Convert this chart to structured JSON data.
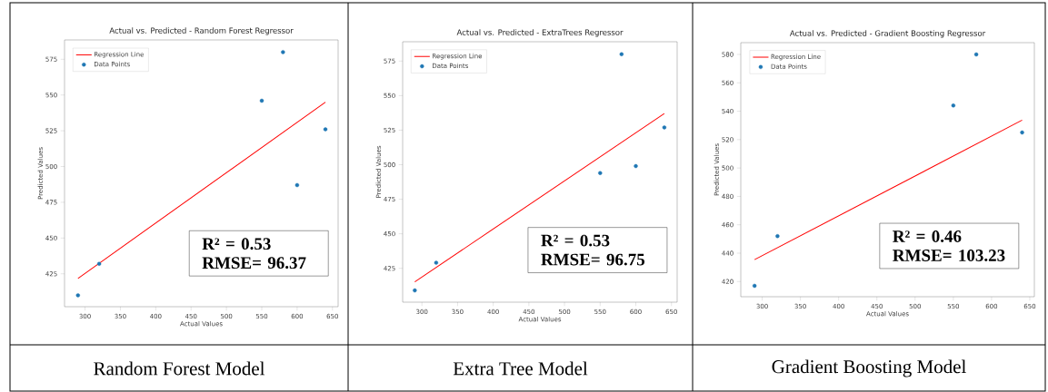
{
  "chart_data": [
    {
      "type": "scatter",
      "title": "Actual vs. Predicted - Random Forest Regressor",
      "xlabel": "Actual Values",
      "ylabel": "Predicted Values",
      "xlim": [
        271,
        658
      ],
      "ylim": [
        402,
        588.5
      ],
      "xticks": [
        300,
        350,
        400,
        450,
        500,
        550,
        600,
        650
      ],
      "yticks": [
        425,
        450,
        475,
        500,
        525,
        550,
        575
      ],
      "legend": "top left",
      "series": [
        {
          "name": "Regression Line",
          "type": "line",
          "marker": "none",
          "color": "#ff0000",
          "x": [
            290,
            640
          ],
          "values": [
            421.8,
            545
          ]
        },
        {
          "name": "Data Points",
          "type": "scatter",
          "marker": "circle",
          "color": "#1f77b4",
          "x": [
            290,
            320,
            550,
            580,
            600,
            640
          ],
          "values": [
            410,
            432,
            546,
            580,
            487,
            526
          ]
        }
      ],
      "annotations": [
        "**R² = 0.53**",
        "**RMSE= 96.37**",
        "Random Forest Model"
      ]
    },
    {
      "type": "scatter",
      "title": "Actual vs. Predicted - ExtraTrees Regressor",
      "xlabel": "Actual Values",
      "ylabel": "Predicted Values",
      "xlim": [
        273,
        658
      ],
      "ylim": [
        400.5,
        589
      ],
      "xticks": [
        300,
        350,
        400,
        450,
        500,
        550,
        600,
        650
      ],
      "yticks": [
        425,
        450,
        475,
        500,
        525,
        550,
        575
      ],
      "legend": "top left",
      "series": [
        {
          "name": "Regression Line",
          "type": "line",
          "marker": "none",
          "color": "#ff0000",
          "x": [
            290,
            640
          ],
          "values": [
            415.2,
            537
          ]
        },
        {
          "name": "Data Points",
          "type": "scatter",
          "marker": "circle",
          "color": "#1f77b4",
          "x": [
            290,
            320,
            550,
            580,
            600,
            640
          ],
          "values": [
            409,
            429,
            494,
            580,
            499,
            527
          ]
        }
      ],
      "annotations": [
        "**R² = 0.53**",
        "**RMSE= 96.75**",
        "Extra Tree Model"
      ]
    },
    {
      "type": "scatter",
      "title": "Actual vs. Predicted - Gradient Boosting Regressor",
      "xlabel": "Actual Values",
      "ylabel": "Predicted Values",
      "xlim": [
        272,
        656
      ],
      "ylim": [
        409.3,
        588.3
      ],
      "xticks": [
        300,
        350,
        400,
        450,
        500,
        550,
        600,
        650
      ],
      "yticks": [
        420,
        440,
        460,
        480,
        500,
        520,
        540,
        560,
        580
      ],
      "legend": "top left",
      "series": [
        {
          "name": "Regression Line",
          "type": "line",
          "marker": "none",
          "color": "#ff0000",
          "x": [
            290,
            640
          ],
          "values": [
            435.4,
            533.7
          ]
        },
        {
          "name": "Data Points",
          "type": "scatter",
          "marker": "circle",
          "color": "#1f77b4",
          "x": [
            290,
            320,
            550,
            580,
            640
          ],
          "values": [
            417,
            452,
            544,
            580,
            525
          ]
        }
      ],
      "annotations": [
        "**R² = 0.46**",
        "**RMSE= 103.23**",
        "Gradient Boosting Model"
      ]
    }
  ]
}
